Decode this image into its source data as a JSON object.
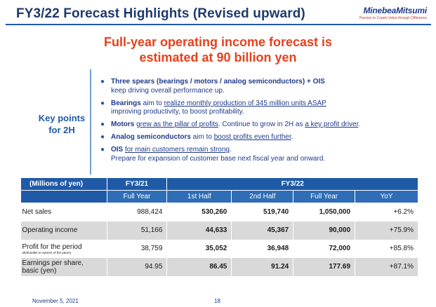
{
  "header": {
    "title": "FY3/22 Forecast Highlights (Revised upward)",
    "logo_name": "MinebeaMitsumi",
    "logo_tagline": "Passion to Create Value through Difference"
  },
  "headline": {
    "line1": "Full-year operating income forecast is",
    "line2": "estimated at 90 billion yen"
  },
  "key_points": {
    "label_line1": "Key points",
    "label_line2": "for 2H",
    "bullets": [
      {
        "b": "Three spears (bearings / motors / analog semiconductors) + OIS",
        "t1": "",
        "line2": "keep driving overall performance up."
      },
      {
        "b": "Bearings",
        "t1": " aim to ",
        "u1": "realize monthly production of 345 million units ASAP",
        "line2": "improving productivity, to boost profitability."
      },
      {
        "b": "Motors",
        "t1": " ",
        "u1": "grew as the pillar of profits",
        "t2": ". Continue to grow in 2H as ",
        "u2": "a key profit driver",
        "t3": "."
      },
      {
        "b": "Analog semiconductors",
        "t1": " aim to ",
        "u1": "boost profits even further",
        "t2": "."
      },
      {
        "b": "OIS",
        "t1": " ",
        "u1": "for main customers remain strong",
        "t2": ".",
        "line2": "Prepare for expansion of customer base next fiscal year and onward."
      }
    ]
  },
  "table": {
    "unit_label": "(Millions of yen)",
    "col_fy21": "FY3/21",
    "col_fy22": "FY3/22",
    "sub_full_year": "Full Year",
    "sub_first_half": "1st Half",
    "sub_second_half": "2nd Half",
    "sub_full_year2": "Full Year",
    "sub_yoy": "YoY",
    "rows": [
      {
        "label": "Net sales",
        "label_small": "",
        "fy21": "988,424",
        "h1": "530,260",
        "h2": "519,740",
        "fy": "1,050,000",
        "yoy": "+6.2%"
      },
      {
        "label": "Operating income",
        "label_small": "",
        "fy21": "51,166",
        "h1": "44,633",
        "h2": "45,367",
        "fy": "90,000",
        "yoy": "+75.9%"
      },
      {
        "label": "Profit for the period",
        "label_small": "attributable to owners of the parent",
        "fy21": "38,759",
        "h1": "35,052",
        "h2": "36,948",
        "fy": "72,000",
        "yoy": "+85.8%"
      },
      {
        "label": "Earnings per share,",
        "label_line2": "basic (yen)",
        "fy21": "94.95",
        "h1": "86.45",
        "h2": "91.24",
        "fy": "177.69",
        "yoy": "+87.1%"
      }
    ]
  },
  "footer": {
    "date": "November 5, 2021",
    "page": "18"
  },
  "colors": {
    "title_navy": "#1f3a6d",
    "accent_blue": "#1f5aa6",
    "headline_orange": "#e8401c",
    "row_shade": "#d9d9d9"
  }
}
